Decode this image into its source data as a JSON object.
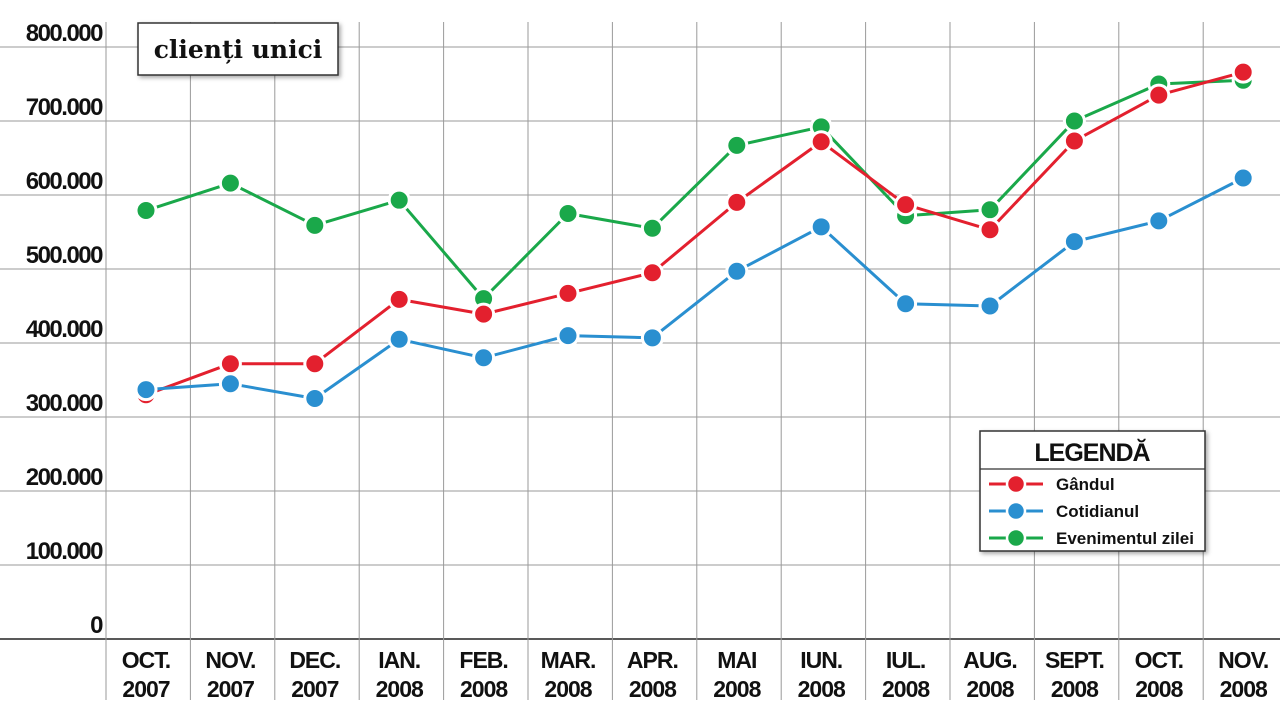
{
  "chart_data": {
    "type": "line",
    "title": "clienți unici",
    "categories": [
      [
        "OCT.",
        "2007"
      ],
      [
        "NOV.",
        "2007"
      ],
      [
        "DEC.",
        "2007"
      ],
      [
        "IAN.",
        "2008"
      ],
      [
        "FEB.",
        "2008"
      ],
      [
        "MAR.",
        "2008"
      ],
      [
        "APR.",
        "2008"
      ],
      [
        "MAI",
        "2008"
      ],
      [
        "IUN.",
        "2008"
      ],
      [
        "IUL.",
        "2008"
      ],
      [
        "AUG.",
        "2008"
      ],
      [
        "SEPT.",
        "2008"
      ],
      [
        "OCT.",
        "2008"
      ],
      [
        "NOV.",
        "2008"
      ]
    ],
    "y_ticks": [
      "0",
      "100.000",
      "200.000",
      "300.000",
      "400.000",
      "500.000",
      "600.000",
      "700.000",
      "800.000"
    ],
    "ylim": [
      0,
      800000
    ],
    "grid": true,
    "legend_title": "LEGENDĂ",
    "legend_placement": "bottom-right",
    "series": [
      {
        "name": "Evenimentul zilei",
        "color": "#1aa84a",
        "values": [
          579000,
          616000,
          559000,
          593000,
          460000,
          575000,
          555000,
          667000,
          692000,
          572000,
          580000,
          700000,
          750000,
          755000
        ]
      },
      {
        "name": "Gândul",
        "color": "#e3202e",
        "values": [
          330000,
          372000,
          372000,
          459000,
          439000,
          467000,
          495000,
          590000,
          672000,
          587000,
          553000,
          673000,
          735000,
          766000
        ]
      },
      {
        "name": "Cotidianul",
        "color": "#2a8fd0",
        "values": [
          337000,
          345000,
          325000,
          405000,
          380000,
          410000,
          407000,
          497000,
          557000,
          453000,
          450000,
          537000,
          565000,
          623000
        ]
      }
    ],
    "legend_order": [
      "Gândul",
      "Cotidianul",
      "Evenimentul zilei"
    ]
  }
}
